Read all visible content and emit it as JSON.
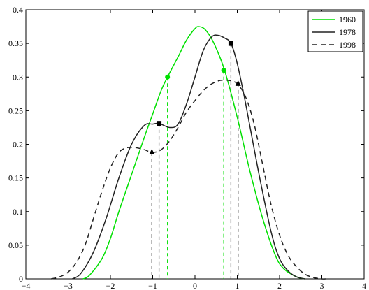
{
  "chart_data": {
    "type": "line",
    "title": "",
    "xlabel": "",
    "ylabel": "",
    "xlim": [
      -4,
      4
    ],
    "ylim": [
      0,
      0.4
    ],
    "xticks": [
      -4,
      -3,
      -2,
      -1,
      0,
      1,
      2,
      3,
      4
    ],
    "yticks": [
      0,
      0.05,
      0.1,
      0.15,
      0.2,
      0.25,
      0.3,
      0.35,
      0.4
    ],
    "xtick_labels": [
      "−4",
      "−3",
      "−2",
      "−1",
      "0",
      "1",
      "2",
      "3",
      "4"
    ],
    "ytick_labels": [
      "0",
      "0.05",
      "0.1",
      "0.15",
      "0.2",
      "0.25",
      "0.3",
      "0.35",
      "0.4"
    ],
    "grid": false,
    "legend_position": "top-right",
    "series": [
      {
        "name": "1960",
        "color": "#00e000",
        "dash": "solid",
        "marker": "circle",
        "x": [
          -2.65,
          -2.5,
          -2.2,
          -2.0,
          -1.8,
          -1.5,
          -1.2,
          -1.0,
          -0.8,
          -0.65,
          -0.4,
          -0.2,
          0.0,
          0.1,
          0.25,
          0.45,
          0.7,
          1.0,
          1.3,
          1.6,
          1.9,
          2.1,
          2.4,
          2.6
        ],
        "y": [
          0.0,
          0.005,
          0.03,
          0.06,
          0.1,
          0.155,
          0.21,
          0.245,
          0.28,
          0.3,
          0.33,
          0.355,
          0.372,
          0.375,
          0.37,
          0.35,
          0.31,
          0.24,
          0.16,
          0.09,
          0.035,
          0.015,
          0.003,
          0.0
        ],
        "markers": [
          {
            "x": -0.65,
            "y": 0.3
          },
          {
            "x": 0.68,
            "y": 0.31
          }
        ]
      },
      {
        "name": "1978",
        "color": "#222222",
        "dash": "solid",
        "marker": "square",
        "x": [
          -2.9,
          -2.7,
          -2.4,
          -2.1,
          -1.8,
          -1.5,
          -1.2,
          -1.0,
          -0.85,
          -0.6,
          -0.4,
          -0.2,
          0.0,
          0.2,
          0.4,
          0.55,
          0.7,
          0.85,
          1.0,
          1.2,
          1.5,
          1.8,
          2.0,
          2.2,
          2.4,
          2.6
        ],
        "y": [
          0.0,
          0.008,
          0.04,
          0.09,
          0.15,
          0.2,
          0.228,
          0.23,
          0.231,
          0.225,
          0.23,
          0.26,
          0.3,
          0.34,
          0.36,
          0.362,
          0.358,
          0.35,
          0.32,
          0.26,
          0.16,
          0.07,
          0.03,
          0.012,
          0.003,
          0.0
        ],
        "markers": [
          {
            "x": -0.85,
            "y": 0.231
          },
          {
            "x": 0.85,
            "y": 0.35
          }
        ]
      },
      {
        "name": "1998",
        "color": "#222222",
        "dash": "dashed",
        "marker": "triangle",
        "x": [
          -3.4,
          -3.2,
          -3.0,
          -2.8,
          -2.6,
          -2.4,
          -2.2,
          -2.0,
          -1.8,
          -1.6,
          -1.4,
          -1.2,
          -1.0,
          -0.8,
          -0.6,
          -0.4,
          -0.2,
          0.0,
          0.2,
          0.4,
          0.6,
          0.8,
          1.0,
          1.2,
          1.4,
          1.6,
          1.8,
          2.0,
          2.2,
          2.4,
          2.6,
          2.8,
          3.0,
          3.1
        ],
        "y": [
          0.0,
          0.003,
          0.01,
          0.025,
          0.05,
          0.09,
          0.13,
          0.165,
          0.188,
          0.195,
          0.195,
          0.192,
          0.188,
          0.192,
          0.205,
          0.225,
          0.248,
          0.265,
          0.28,
          0.29,
          0.295,
          0.295,
          0.29,
          0.27,
          0.23,
          0.17,
          0.11,
          0.065,
          0.035,
          0.018,
          0.007,
          0.002,
          0.0,
          0.0
        ],
        "markers": [
          {
            "x": -1.02,
            "y": 0.188
          },
          {
            "x": 1.02,
            "y": 0.29
          }
        ]
      }
    ]
  }
}
